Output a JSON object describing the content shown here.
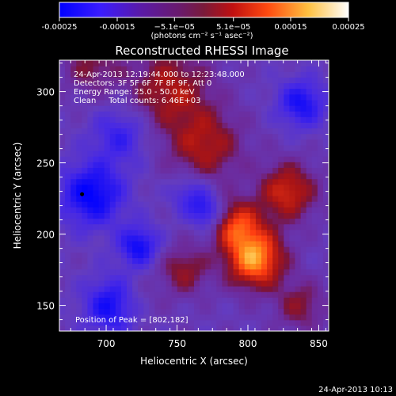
{
  "colorbar": {
    "ticks": [
      "-0.00025",
      "-0.00015",
      "−5.1e−05",
      "5.1e−05",
      "0.00015",
      "0.00025"
    ],
    "tick_values": [
      -0.00025,
      -0.00015,
      -5.1e-05,
      5.1e-05,
      0.00015,
      0.00025
    ],
    "min": -0.00025,
    "max": 0.00025,
    "units_label": "(photons cm⁻² s⁻¹ asec⁻²)"
  },
  "title": "Reconstructed RHESSI Image",
  "info": {
    "line1": "24-Apr-2013 12:19:44.000 to 12:23:48.000",
    "line2": "Detectors: 3F 5F 6F 7F 8F 9F, Att 0",
    "line3": "Energy Range: 25.0 - 50.0 keV",
    "line4": "Clean     Total counts: 6.46E+03"
  },
  "peak_label": "Position of Peak = [802,182]",
  "xlabel": "Heliocentric X (arcsec)",
  "ylabel": "Heliocentric Y (arcsec)",
  "footer_timestamp": "24-Apr-2013 10:13",
  "chart_data": {
    "type": "heatmap",
    "title": "Reconstructed RHESSI Image",
    "xlabel": "Heliocentric X (arcsec)",
    "ylabel": "Heliocentric Y (arcsec)",
    "xlim": [
      667,
      857
    ],
    "ylim": [
      132,
      322
    ],
    "x_ticks": [
      700,
      750,
      800,
      850
    ],
    "y_ticks": [
      150,
      200,
      250,
      300
    ],
    "colorbar_range": [
      -0.00025,
      0.00025
    ],
    "colormap": [
      "#0000ff",
      "#6a3cc8",
      "#7a1a8a",
      "#b01a1a",
      "#ff3010",
      "#ff9a20",
      "#ffffaa",
      "#ffffff"
    ],
    "peak_position": [
      802,
      182
    ],
    "blobs": [
      {
        "x": 805,
        "y": 183,
        "sigma": 14,
        "amp": 0.00024
      },
      {
        "x": 792,
        "y": 207,
        "sigma": 12,
        "amp": 0.00016
      },
      {
        "x": 828,
        "y": 230,
        "sigma": 14,
        "amp": 0.00015
      },
      {
        "x": 770,
        "y": 262,
        "sigma": 18,
        "amp": 0.00012
      },
      {
        "x": 745,
        "y": 302,
        "sigma": 20,
        "amp": 0.00012
      },
      {
        "x": 690,
        "y": 318,
        "sigma": 14,
        "amp": 8e-05
      },
      {
        "x": 755,
        "y": 175,
        "sigma": 12,
        "amp": 0.0001
      },
      {
        "x": 837,
        "y": 150,
        "sigma": 12,
        "amp": 9e-05
      },
      {
        "x": 720,
        "y": 152,
        "sigma": 12,
        "amp": 5e-05
      },
      {
        "x": 690,
        "y": 228,
        "sigma": 16,
        "amp": -0.00017
      },
      {
        "x": 705,
        "y": 150,
        "sigma": 14,
        "amp": -0.00016
      },
      {
        "x": 723,
        "y": 192,
        "sigma": 10,
        "amp": -0.00015
      },
      {
        "x": 838,
        "y": 292,
        "sigma": 12,
        "amp": -0.00014
      },
      {
        "x": 772,
        "y": 215,
        "sigma": 8,
        "amp": -0.00012
      },
      {
        "x": 760,
        "y": 228,
        "sigma": 10,
        "amp": -0.0001
      },
      {
        "x": 710,
        "y": 270,
        "sigma": 14,
        "amp": -0.0001
      }
    ]
  }
}
